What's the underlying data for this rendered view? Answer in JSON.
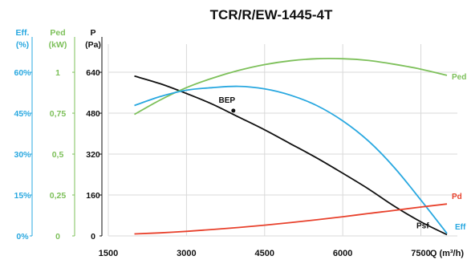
{
  "chart_data": {
    "type": "line",
    "title": "TCR/R/EW-1445-4T",
    "xlabel": "Q (m³/h)",
    "x_ticks": [
      "1500",
      "3000",
      "4500",
      "6000",
      "7500"
    ],
    "xlim": [
      1500,
      8200
    ],
    "grid": true,
    "axes": {
      "eff": {
        "head": [
          "Eff.",
          "(%)"
        ],
        "ticks": [
          "0%",
          "15%",
          "30%",
          "45%",
          "60%"
        ],
        "color": "#29a8e0"
      },
      "ped": {
        "head": [
          "Ped",
          "(kW)"
        ],
        "ticks": [
          "0",
          "0,25",
          "0,5",
          "0,75",
          "1"
        ],
        "color": "#7dc05a"
      },
      "p": {
        "head": [
          "P",
          "(Pa)"
        ],
        "ticks": [
          "0",
          "160",
          "320",
          "480",
          "640"
        ],
        "ylim": [
          0,
          750
        ],
        "color": "#111111"
      }
    },
    "series": [
      {
        "name": "Psf",
        "axis": "p",
        "color": "#111111",
        "x": [
          2000,
          2500,
          3000,
          3500,
          4000,
          4500,
          5000,
          5500,
          6000,
          6500,
          7000,
          7500,
          8000
        ],
        "y": [
          625,
          595,
          557,
          515,
          465,
          415,
          360,
          305,
          245,
          183,
          115,
          55,
          5
        ]
      },
      {
        "name": "Ped",
        "axis": "p",
        "color": "#7dc05a",
        "x": [
          2000,
          2500,
          3000,
          3500,
          4000,
          4500,
          5000,
          5500,
          6000,
          6500,
          7000,
          7500,
          8000
        ],
        "y": [
          475,
          532,
          580,
          617,
          647,
          670,
          685,
          693,
          693,
          686,
          671,
          652,
          628
        ]
      },
      {
        "name": "Eff",
        "axis": "p",
        "color": "#29a8e0",
        "x": [
          2000,
          2500,
          3000,
          3500,
          4000,
          4500,
          5000,
          5500,
          6000,
          6500,
          7000,
          7500,
          8000
        ],
        "y": [
          510,
          545,
          570,
          580,
          585,
          575,
          550,
          510,
          450,
          370,
          265,
          140,
          10
        ]
      },
      {
        "name": "Pd",
        "axis": "p",
        "color": "#e8412c",
        "x": [
          2000,
          2500,
          3000,
          3500,
          4000,
          4500,
          5000,
          5500,
          6000,
          6500,
          7000,
          7500,
          8000
        ],
        "y": [
          8,
          12,
          18,
          25,
          33,
          42,
          52,
          63,
          75,
          88,
          100,
          113,
          125
        ]
      }
    ],
    "annotations": [
      {
        "text": "BEP",
        "x": 3900,
        "y": 490
      }
    ]
  }
}
